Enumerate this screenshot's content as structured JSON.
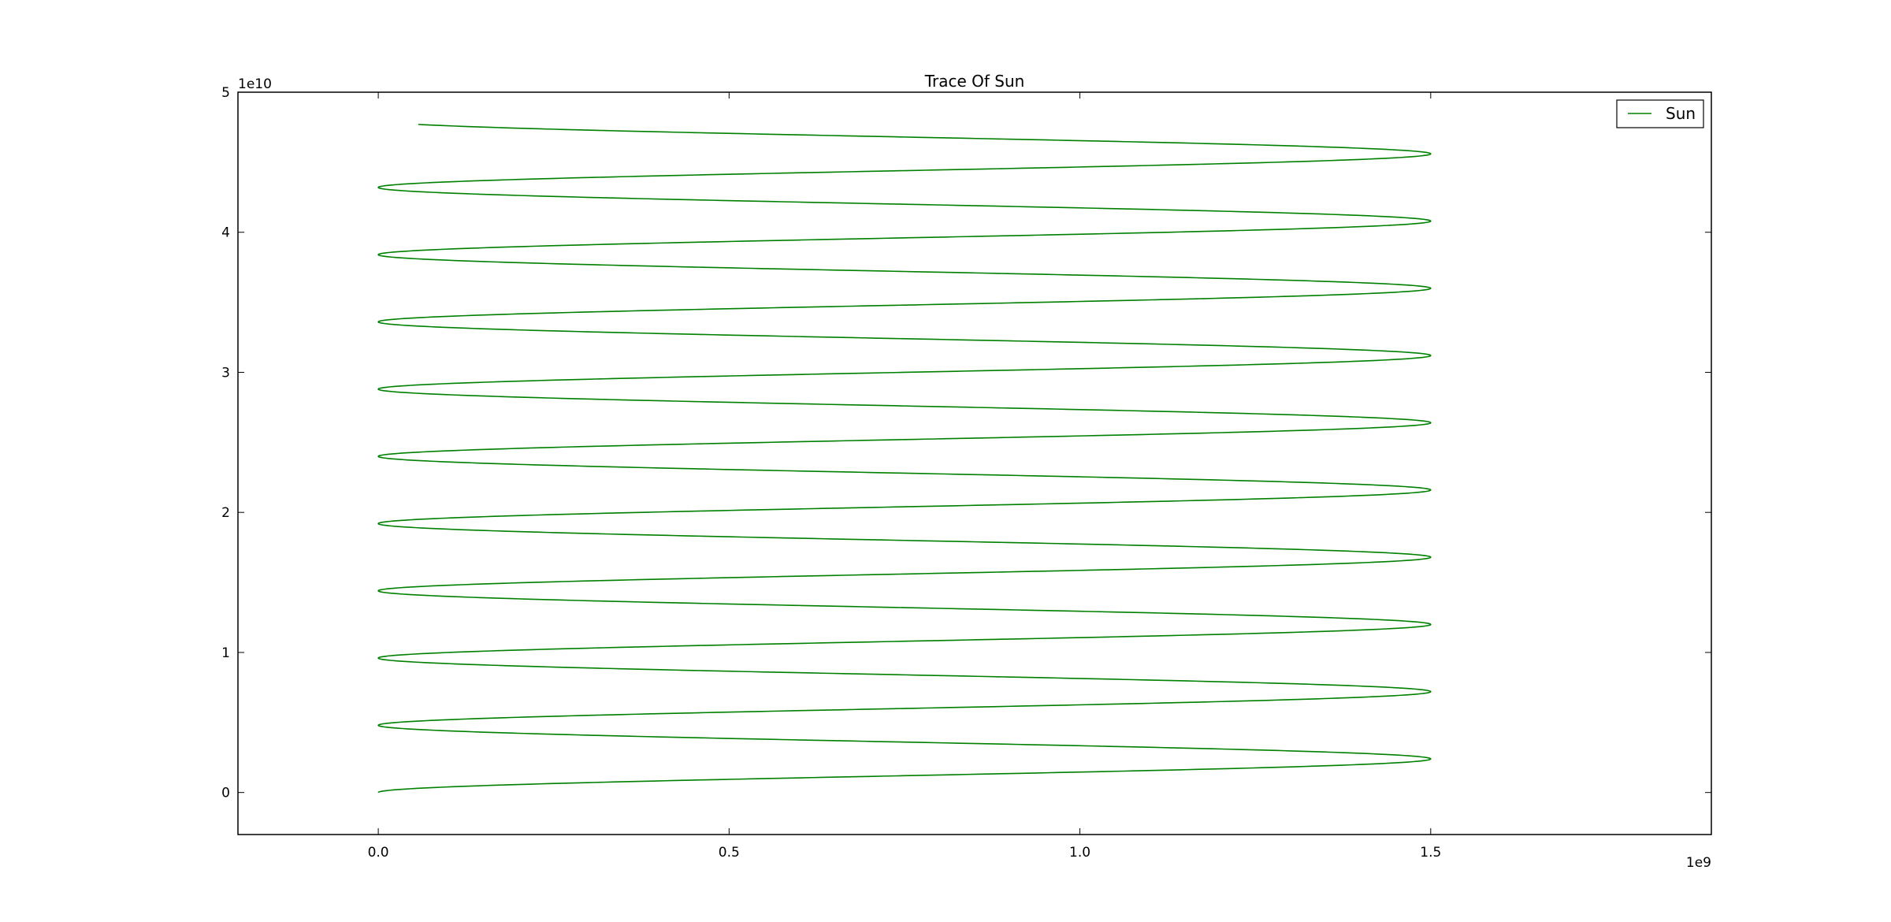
{
  "chart_data": {
    "type": "line",
    "title": "Trace Of Sun",
    "xlabel": "",
    "ylabel": "",
    "x_offset_label": "1e9",
    "y_offset_label": "1e10",
    "xlim": [
      -0.2,
      1.9
    ],
    "ylim": [
      -0.3,
      5.0
    ],
    "x_ticks": [
      {
        "value": 0.0,
        "label": "0.0"
      },
      {
        "value": 0.5,
        "label": "0.5"
      },
      {
        "value": 1.0,
        "label": "1.0"
      },
      {
        "value": 1.5,
        "label": "1.5"
      }
    ],
    "y_ticks": [
      {
        "value": 0,
        "label": "0"
      },
      {
        "value": 1,
        "label": "1"
      },
      {
        "value": 2,
        "label": "2"
      },
      {
        "value": 3,
        "label": "3"
      },
      {
        "value": 4,
        "label": "4"
      },
      {
        "value": 5,
        "label": "5"
      }
    ],
    "grid": false,
    "legend": {
      "position": "top-right",
      "entries": [
        "Sun"
      ]
    },
    "series": [
      {
        "name": "Sun",
        "color": "#008000",
        "x": [
          0.0,
          1.5,
          0.0,
          1.5,
          0.0,
          1.5,
          0.0,
          1.5,
          0.0,
          1.5,
          0.0,
          1.5,
          0.0,
          1.5,
          0.0,
          1.5,
          0.0,
          1.5,
          0.0,
          1.5,
          0.0,
          1.5,
          0.0
        ],
        "y": [
          0.0,
          0.24,
          0.48,
          0.72,
          0.96,
          1.2,
          1.44,
          1.68,
          1.92,
          2.16,
          2.4,
          2.64,
          2.88,
          3.12,
          3.36,
          3.6,
          3.84,
          4.08,
          4.32,
          4.56,
          4.8,
          5.04,
          5.28
        ]
      }
    ],
    "series_y_extent": 4.77
  }
}
